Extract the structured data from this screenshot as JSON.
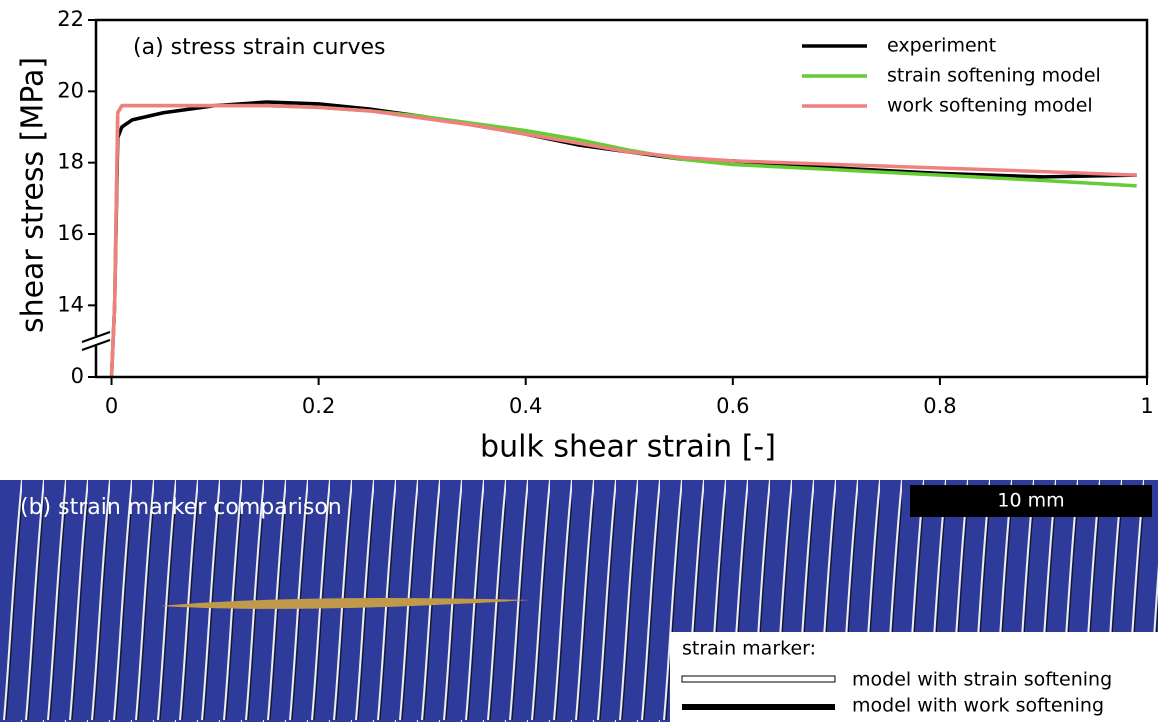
{
  "chart_data": {
    "type": "line",
    "title": "(a) stress strain curves",
    "xlabel": "bulk shear strain [-]",
    "ylabel": "shear stress [MPa]",
    "x": [
      0,
      0.003,
      0.006,
      0.01,
      0.02,
      0.05,
      0.1,
      0.15,
      0.2,
      0.25,
      0.3,
      0.35,
      0.4,
      0.45,
      0.5,
      0.55,
      0.6,
      0.7,
      0.8,
      0.9,
      0.99
    ],
    "series": [
      {
        "name": "experiment",
        "color": "#000000",
        "values": [
          0,
          14,
          18.7,
          19.0,
          19.2,
          19.4,
          19.6,
          19.7,
          19.65,
          19.5,
          19.3,
          19.05,
          18.8,
          18.5,
          18.3,
          18.1,
          18.05,
          17.85,
          17.7,
          17.6,
          17.65
        ]
      },
      {
        "name": "strain softening model",
        "color": "#66cc33",
        "values": [
          0,
          14,
          19.4,
          19.6,
          19.6,
          19.6,
          19.6,
          19.6,
          19.55,
          19.45,
          19.3,
          19.1,
          18.9,
          18.65,
          18.35,
          18.1,
          17.95,
          17.8,
          17.65,
          17.5,
          17.35
        ]
      },
      {
        "name": "work softening model",
        "color": "#f08080",
        "values": [
          0,
          14,
          19.4,
          19.6,
          19.6,
          19.6,
          19.6,
          19.6,
          19.55,
          19.45,
          19.25,
          19.05,
          18.8,
          18.55,
          18.3,
          18.15,
          18.05,
          17.95,
          17.85,
          17.75,
          17.65
        ]
      }
    ],
    "xlim": [
      -0.015,
      1
    ],
    "xticks": [
      0,
      0.2,
      0.4,
      0.6,
      0.8,
      1
    ],
    "ylim": [
      0,
      22
    ],
    "ybreak": 13,
    "yticks": [
      0,
      14,
      16,
      18,
      20,
      22
    ],
    "legend": "upper right"
  },
  "panel_b": {
    "title": "(b) strain marker comparison",
    "scale_bar": "10 mm",
    "legend_title": "strain marker:",
    "legend": [
      "model with strain softening",
      "model with work softening"
    ]
  }
}
